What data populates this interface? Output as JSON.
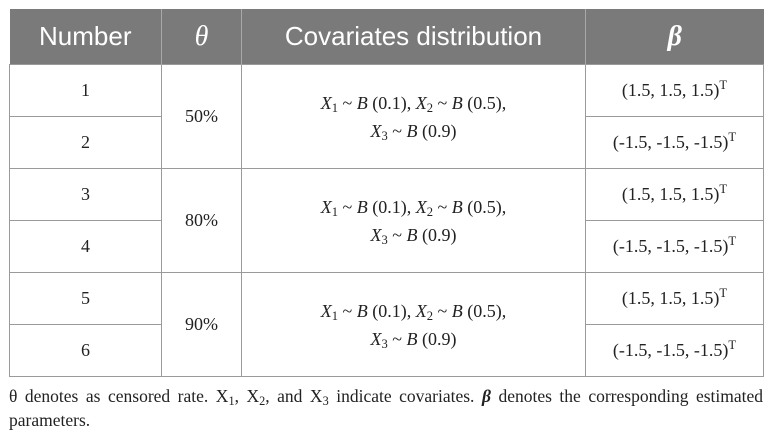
{
  "table": {
    "headers": {
      "number": "Number",
      "theta": "θ",
      "covariates": "Covariates distribution",
      "beta": "β"
    },
    "groups": [
      {
        "rate": "50%",
        "cov_line1": [
          "X",
          "1",
          " ~ ",
          "B",
          " (0.1), ",
          "X",
          "2",
          " ~ ",
          "B",
          " (0.5),"
        ],
        "cov_line2": [
          "X",
          "3",
          " ~ ",
          "B",
          " (0.9)"
        ],
        "rows": [
          {
            "number": "1",
            "beta": "(1.5, 1.5, 1.5)",
            "beta_sup": "T"
          },
          {
            "number": "2",
            "beta": "(-1.5, -1.5, -1.5)",
            "beta_sup": "T"
          }
        ]
      },
      {
        "rate": "80%",
        "cov_line1": [
          "X",
          "1",
          " ~ ",
          "B",
          " (0.1), ",
          "X",
          "2",
          " ~ ",
          "B",
          " (0.5),"
        ],
        "cov_line2": [
          "X",
          "3",
          " ~ ",
          "B",
          " (0.9)"
        ],
        "rows": [
          {
            "number": "3",
            "beta": "(1.5, 1.5, 1.5)",
            "beta_sup": "T"
          },
          {
            "number": "4",
            "beta": "(-1.5, -1.5, -1.5)",
            "beta_sup": "T"
          }
        ]
      },
      {
        "rate": "90%",
        "cov_line1": [
          "X",
          "1",
          " ~ ",
          "B",
          " (0.1), ",
          "X",
          "2",
          " ~ ",
          "B",
          " (0.5),"
        ],
        "cov_line2": [
          "X",
          "3",
          " ~ ",
          "B",
          " (0.9)"
        ],
        "rows": [
          {
            "number": "5",
            "beta": "(1.5, 1.5, 1.5)",
            "beta_sup": "T"
          },
          {
            "number": "6",
            "beta": "(-1.5, -1.5, -1.5)",
            "beta_sup": "T"
          }
        ]
      }
    ]
  },
  "caption": {
    "part1": "θ denotes as censored rate. X",
    "sub1": "1",
    "part2": ", X",
    "sub2": "2",
    "part3": ", and X",
    "sub3": "3",
    "part4": " indicate covariates. ",
    "beta": "β",
    "part5": " denotes the corresponding estimated parameters."
  }
}
